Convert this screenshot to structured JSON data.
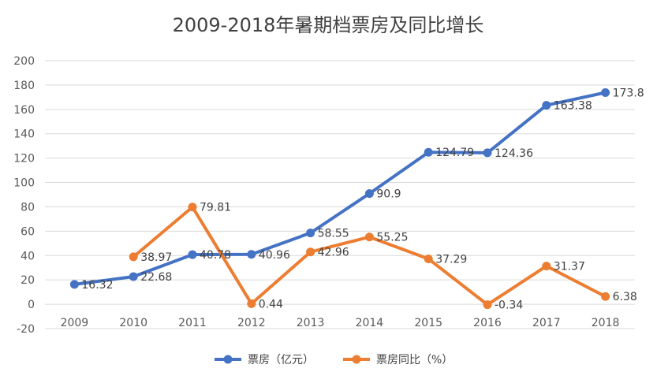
{
  "chart_data": {
    "type": "line",
    "title": "2009-2018年暑期档票房及同比增长",
    "xlabel": "",
    "ylabel": "",
    "ylim": [
      -20,
      200
    ],
    "y_ticks": [
      "200",
      "180",
      "160",
      "140",
      "120",
      "100",
      "80",
      "60",
      "40",
      "20",
      "0",
      "-20"
    ],
    "y_tick_values": [
      200,
      180,
      160,
      140,
      120,
      100,
      80,
      60,
      40,
      20,
      0,
      -20
    ],
    "categories": [
      "2009",
      "2010",
      "2011",
      "2012",
      "2013",
      "2014",
      "2015",
      "2016",
      "2017",
      "2018"
    ],
    "grid": true,
    "legend_position": "bottom",
    "series": [
      {
        "name": "票房（亿元）",
        "color": "#4472C4",
        "values": [
          16.32,
          22.68,
          40.78,
          40.96,
          58.55,
          90.9,
          124.79,
          124.36,
          163.38,
          173.8
        ],
        "labels": [
          "16.32",
          "22.68",
          "40.78",
          "40.96",
          "58.55",
          "90.9",
          "124.79",
          "124.36",
          "163.38",
          "173.8"
        ]
      },
      {
        "name": "票房同比（%）",
        "color": "#ED7D31",
        "values": [
          null,
          38.97,
          79.81,
          0.44,
          42.96,
          55.25,
          37.29,
          -0.34,
          31.37,
          6.38
        ],
        "labels": [
          null,
          "38.97",
          "79.81",
          "0.44",
          "42.96",
          "55.25",
          "37.29",
          "-0.34",
          "31.37",
          "6.38"
        ]
      }
    ]
  }
}
